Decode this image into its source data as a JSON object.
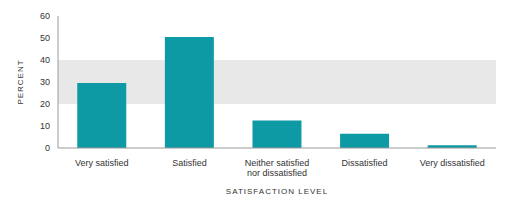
{
  "chart_data": {
    "type": "bar",
    "x_label": "SATISFACTION LEVEL",
    "y_label": "PERCENT",
    "categories": [
      "Very satisfied",
      "Satisfied",
      "Neither satisfied nor dissatisfied",
      "Dissatisfied",
      "Very dissatisfied"
    ],
    "values": [
      29.5,
      50.5,
      12.5,
      6.5,
      1.2
    ],
    "color": "#0e9aa5",
    "ylim": [
      0,
      60
    ],
    "yticks": [
      0,
      10,
      20,
      30,
      40,
      50,
      60
    ],
    "grid": true
  }
}
